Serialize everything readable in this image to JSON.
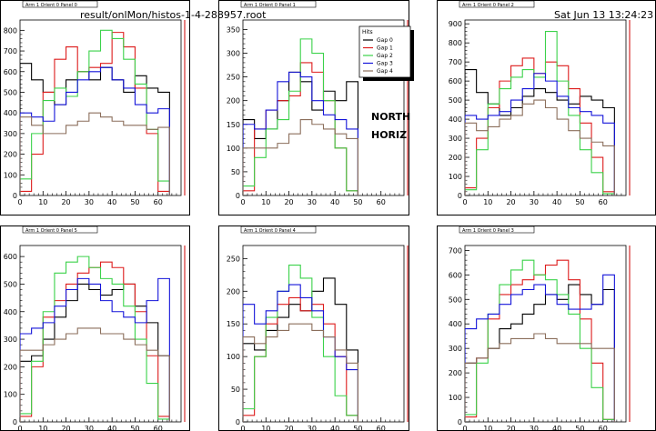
{
  "header": {
    "file_path": "result/onlMon/histos-1-4-288957.root",
    "timestamp": "Sat Jun 13 13:24:23 2009"
  },
  "center_label": {
    "line1": "NORTH",
    "line2": "HORIZ"
  },
  "legend": {
    "title": "Hits",
    "entries": [
      "Gap 0",
      "Gap 1",
      "Gap 2",
      "Gap 3",
      "Gap 4"
    ]
  },
  "colors": {
    "Gap 0": "#000000",
    "Gap 1": "#dd1c1c",
    "Gap 2": "#3bd24a",
    "Gap 3": "#1414d9",
    "Gap 4": "#8b6e5b"
  },
  "chart_data": [
    {
      "type": "line",
      "title": "Arm 1 Orient 0 Panel 0",
      "xlim": [
        0,
        70
      ],
      "ylim": [
        0,
        850
      ],
      "xticks": [
        "0",
        "10",
        "20",
        "30",
        "40",
        "50",
        "60"
      ],
      "yticks": [
        "0",
        "100",
        "200",
        "300",
        "400",
        "500",
        "600",
        "700",
        "800"
      ],
      "series": [
        {
          "name": "Gap 0",
          "x": [
            0,
            5,
            10,
            15,
            20,
            25,
            30,
            35,
            40,
            45,
            50,
            55,
            60
          ],
          "y": [
            640,
            560,
            500,
            440,
            560,
            600,
            560,
            620,
            560,
            500,
            580,
            520,
            500
          ]
        },
        {
          "name": "Gap 1",
          "x": [
            0,
            5,
            10,
            15,
            20,
            25,
            30,
            35,
            40,
            45,
            50,
            55,
            60
          ],
          "y": [
            20,
            200,
            500,
            660,
            720,
            600,
            620,
            640,
            790,
            720,
            520,
            300,
            20
          ]
        },
        {
          "name": "Gap 2",
          "x": [
            0,
            5,
            10,
            15,
            20,
            25,
            30,
            35,
            40,
            45,
            50,
            55,
            60
          ],
          "y": [
            80,
            300,
            460,
            520,
            480,
            600,
            700,
            800,
            760,
            660,
            540,
            320,
            70
          ]
        },
        {
          "name": "Gap 3",
          "x": [
            0,
            5,
            10,
            15,
            20,
            25,
            30,
            35,
            40,
            45,
            50,
            55,
            60
          ],
          "y": [
            400,
            380,
            360,
            440,
            500,
            560,
            600,
            620,
            560,
            520,
            440,
            400,
            420
          ]
        },
        {
          "name": "Gap 4",
          "x": [
            0,
            5,
            10,
            15,
            20,
            25,
            30,
            35,
            40,
            45,
            50,
            55,
            60
          ],
          "y": [
            380,
            340,
            300,
            300,
            340,
            360,
            400,
            380,
            360,
            340,
            340,
            320,
            330
          ]
        }
      ]
    },
    {
      "type": "line",
      "title": "Arm 1 Orient 0 Panel 1",
      "xlim": [
        0,
        70
      ],
      "ylim": [
        0,
        370
      ],
      "xticks": [
        "0",
        "10",
        "20",
        "30",
        "40",
        "50",
        "60"
      ],
      "yticks": [
        "0",
        "50",
        "100",
        "150",
        "200",
        "250",
        "300",
        "350"
      ],
      "series": [
        {
          "name": "Gap 0",
          "x": [
            0,
            5,
            10,
            15,
            20,
            25,
            30,
            35,
            40,
            45
          ],
          "y": [
            160,
            120,
            140,
            200,
            260,
            240,
            180,
            220,
            200,
            240
          ]
        },
        {
          "name": "Gap 1",
          "x": [
            0,
            5,
            10,
            15,
            20,
            25,
            30,
            35,
            40,
            45
          ],
          "y": [
            10,
            140,
            180,
            200,
            210,
            280,
            260,
            200,
            100,
            10
          ]
        },
        {
          "name": "Gap 2",
          "x": [
            0,
            5,
            10,
            15,
            20,
            25,
            30,
            35,
            40,
            45
          ],
          "y": [
            20,
            80,
            140,
            160,
            220,
            330,
            300,
            200,
            100,
            10
          ]
        },
        {
          "name": "Gap 3",
          "x": [
            0,
            5,
            10,
            15,
            20,
            25,
            30,
            35,
            40,
            45
          ],
          "y": [
            150,
            140,
            180,
            240,
            260,
            250,
            200,
            170,
            160,
            140
          ]
        },
        {
          "name": "Gap 4",
          "x": [
            0,
            5,
            10,
            15,
            20,
            25,
            30,
            35,
            40,
            45
          ],
          "y": [
            100,
            100,
            100,
            110,
            130,
            160,
            150,
            140,
            130,
            120
          ]
        }
      ]
    },
    {
      "type": "line",
      "title": "Arm 1 Orient 0 Panel 2",
      "xlim": [
        0,
        70
      ],
      "ylim": [
        0,
        920
      ],
      "xticks": [
        "0",
        "10",
        "20",
        "30",
        "40",
        "50",
        "60"
      ],
      "yticks": [
        "0",
        "100",
        "200",
        "300",
        "400",
        "500",
        "600",
        "700",
        "800",
        "900"
      ],
      "series": [
        {
          "name": "Gap 0",
          "x": [
            0,
            5,
            10,
            15,
            20,
            25,
            30,
            35,
            40,
            45,
            50,
            55,
            60
          ],
          "y": [
            660,
            540,
            480,
            420,
            460,
            520,
            560,
            540,
            500,
            480,
            520,
            500,
            460
          ]
        },
        {
          "name": "Gap 1",
          "x": [
            0,
            5,
            10,
            15,
            20,
            25,
            30,
            35,
            40,
            45,
            50,
            55,
            60
          ],
          "y": [
            40,
            300,
            460,
            600,
            680,
            720,
            640,
            700,
            680,
            560,
            380,
            200,
            20
          ]
        },
        {
          "name": "Gap 2",
          "x": [
            0,
            5,
            10,
            15,
            20,
            25,
            30,
            35,
            40,
            45,
            50,
            55,
            60
          ],
          "y": [
            30,
            240,
            480,
            560,
            620,
            660,
            620,
            860,
            600,
            420,
            240,
            120,
            10
          ]
        },
        {
          "name": "Gap 3",
          "x": [
            0,
            5,
            10,
            15,
            20,
            25,
            30,
            35,
            40,
            45,
            50,
            55,
            60
          ],
          "y": [
            420,
            400,
            420,
            440,
            500,
            560,
            640,
            600,
            520,
            460,
            440,
            420,
            380
          ]
        },
        {
          "name": "Gap 4",
          "x": [
            0,
            5,
            10,
            15,
            20,
            25,
            30,
            35,
            40,
            45,
            50,
            55,
            60
          ],
          "y": [
            380,
            340,
            360,
            400,
            420,
            480,
            500,
            460,
            400,
            340,
            300,
            280,
            260
          ]
        }
      ]
    },
    {
      "type": "line",
      "title": "Arm 1 Orient 0 Panel 5",
      "xlim": [
        0,
        70
      ],
      "ylim": [
        0,
        640
      ],
      "xticks": [
        "0",
        "10",
        "20",
        "30",
        "40",
        "50",
        "60"
      ],
      "yticks": [
        "0",
        "100",
        "200",
        "300",
        "400",
        "500",
        "600"
      ],
      "series": [
        {
          "name": "Gap 0",
          "x": [
            0,
            5,
            10,
            15,
            20,
            25,
            30,
            35,
            40,
            45,
            50,
            55,
            60
          ],
          "y": [
            220,
            240,
            300,
            380,
            440,
            500,
            480,
            460,
            480,
            500,
            420,
            360,
            240
          ]
        },
        {
          "name": "Gap 1",
          "x": [
            0,
            5,
            10,
            15,
            20,
            25,
            30,
            35,
            40,
            45,
            50,
            55,
            60
          ],
          "y": [
            20,
            200,
            380,
            440,
            500,
            540,
            560,
            580,
            560,
            500,
            400,
            240,
            20
          ]
        },
        {
          "name": "Gap 2",
          "x": [
            0,
            5,
            10,
            15,
            20,
            25,
            30,
            35,
            40,
            45,
            50,
            55,
            60
          ],
          "y": [
            30,
            220,
            400,
            540,
            580,
            600,
            560,
            520,
            500,
            420,
            300,
            140,
            10
          ]
        },
        {
          "name": "Gap 3",
          "x": [
            0,
            5,
            10,
            15,
            20,
            25,
            30,
            35,
            40,
            45,
            50,
            55,
            60
          ],
          "y": [
            320,
            340,
            360,
            420,
            480,
            520,
            500,
            440,
            400,
            380,
            360,
            440,
            520
          ]
        },
        {
          "name": "Gap 4",
          "x": [
            0,
            5,
            10,
            15,
            20,
            25,
            30,
            35,
            40,
            45,
            50,
            55,
            60
          ],
          "y": [
            260,
            260,
            280,
            300,
            320,
            340,
            340,
            320,
            320,
            300,
            280,
            260,
            240
          ]
        }
      ]
    },
    {
      "type": "line",
      "title": "Arm 1 Orient 0 Panel 4",
      "xlim": [
        0,
        70
      ],
      "ylim": [
        0,
        270
      ],
      "xticks": [
        "0",
        "10",
        "20",
        "30",
        "40",
        "50",
        "60"
      ],
      "yticks": [
        "0",
        "50",
        "100",
        "150",
        "200",
        "250"
      ],
      "series": [
        {
          "name": "Gap 0",
          "x": [
            0,
            5,
            10,
            15,
            20,
            25,
            30,
            35,
            40,
            45
          ],
          "y": [
            120,
            110,
            140,
            160,
            180,
            170,
            200,
            220,
            180,
            110
          ]
        },
        {
          "name": "Gap 1",
          "x": [
            0,
            5,
            10,
            15,
            20,
            25,
            30,
            35,
            40,
            45
          ],
          "y": [
            10,
            100,
            150,
            180,
            190,
            170,
            180,
            150,
            100,
            10
          ]
        },
        {
          "name": "Gap 2",
          "x": [
            0,
            5,
            10,
            15,
            20,
            25,
            30,
            35,
            40,
            45
          ],
          "y": [
            20,
            100,
            160,
            200,
            240,
            220,
            160,
            100,
            40,
            10
          ]
        },
        {
          "name": "Gap 3",
          "x": [
            0,
            5,
            10,
            15,
            20,
            25,
            30,
            35,
            40,
            45
          ],
          "y": [
            180,
            150,
            170,
            200,
            210,
            190,
            170,
            130,
            100,
            80
          ]
        },
        {
          "name": "Gap 4",
          "x": [
            0,
            5,
            10,
            15,
            20,
            25,
            30,
            35,
            40,
            45
          ],
          "y": [
            130,
            120,
            130,
            140,
            150,
            150,
            140,
            130,
            110,
            90
          ]
        }
      ]
    },
    {
      "type": "line",
      "title": "Arm 1 Orient 0 Panel 3",
      "xlim": [
        0,
        70
      ],
      "ylim": [
        0,
        720
      ],
      "xticks": [
        "0",
        "10",
        "20",
        "30",
        "40",
        "50",
        "60"
      ],
      "yticks": [
        "0",
        "100",
        "200",
        "300",
        "400",
        "500",
        "600",
        "700"
      ],
      "series": [
        {
          "name": "Gap 0",
          "x": [
            0,
            5,
            10,
            15,
            20,
            25,
            30,
            35,
            40,
            45,
            50,
            55,
            60
          ],
          "y": [
            240,
            260,
            300,
            380,
            400,
            440,
            480,
            520,
            500,
            560,
            520,
            480,
            540
          ]
        },
        {
          "name": "Gap 1",
          "x": [
            0,
            5,
            10,
            15,
            20,
            25,
            30,
            35,
            40,
            45,
            50,
            55,
            60
          ],
          "y": [
            20,
            260,
            420,
            520,
            560,
            580,
            600,
            640,
            660,
            580,
            420,
            240,
            10
          ]
        },
        {
          "name": "Gap 2",
          "x": [
            0,
            5,
            10,
            15,
            20,
            25,
            30,
            35,
            40,
            45,
            50,
            55,
            60
          ],
          "y": [
            30,
            240,
            440,
            560,
            620,
            660,
            600,
            580,
            520,
            440,
            300,
            140,
            10
          ]
        },
        {
          "name": "Gap 3",
          "x": [
            0,
            5,
            10,
            15,
            20,
            25,
            30,
            35,
            40,
            45,
            50,
            55,
            60
          ],
          "y": [
            380,
            420,
            440,
            480,
            520,
            540,
            560,
            520,
            480,
            460,
            460,
            480,
            600
          ]
        },
        {
          "name": "Gap 4",
          "x": [
            0,
            5,
            10,
            15,
            20,
            25,
            30,
            35,
            40,
            45,
            50,
            55,
            60
          ],
          "y": [
            240,
            260,
            300,
            320,
            340,
            340,
            360,
            340,
            320,
            320,
            320,
            300,
            300
          ]
        }
      ]
    }
  ]
}
